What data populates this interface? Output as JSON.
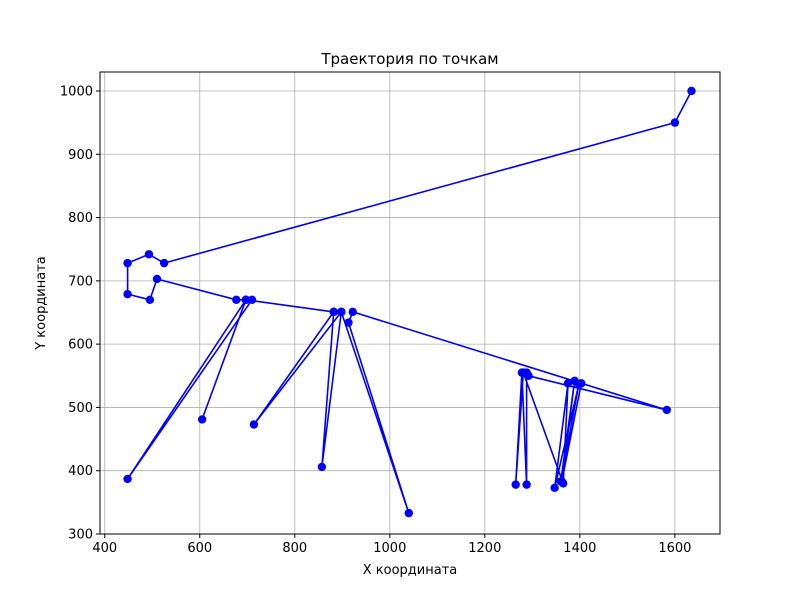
{
  "chart_data": {
    "type": "line",
    "title": "Траектория по точкам",
    "xlabel": "X координата",
    "ylabel": "Y координата",
    "xlim": [
      390,
      1695
    ],
    "ylim": [
      300,
      1030
    ],
    "xticks": [
      400,
      600,
      800,
      1000,
      1200,
      1400,
      1600
    ],
    "yticks": [
      300,
      400,
      500,
      600,
      700,
      800,
      900,
      1000
    ],
    "grid": true,
    "series": [
      {
        "color": "#0000ff",
        "marker": "circle",
        "points": [
          [
            1635,
            1000
          ],
          [
            1600,
            950
          ],
          [
            525,
            728
          ],
          [
            493,
            742
          ],
          [
            448,
            728
          ],
          [
            448,
            679
          ],
          [
            495,
            670
          ],
          [
            510,
            703
          ],
          [
            677,
            670
          ],
          [
            697,
            670
          ],
          [
            710,
            670
          ],
          [
            448,
            387
          ],
          [
            697,
            670
          ],
          [
            605,
            481
          ],
          [
            697,
            670
          ],
          [
            882,
            651
          ],
          [
            898,
            651
          ],
          [
            714,
            473
          ],
          [
            882,
            651
          ],
          [
            857,
            406
          ],
          [
            898,
            651
          ],
          [
            1040,
            333
          ],
          [
            913,
            634
          ],
          [
            922,
            651
          ],
          [
            1583,
            496
          ],
          [
            1292,
            550
          ],
          [
            1288,
            555
          ],
          [
            1288,
            378
          ],
          [
            1278,
            555
          ],
          [
            1265,
            378
          ],
          [
            1281,
            555
          ],
          [
            1365,
            380
          ],
          [
            1375,
            538
          ],
          [
            1347,
            373
          ],
          [
            1398,
            537
          ],
          [
            1360,
            383
          ],
          [
            1389,
            542
          ],
          [
            1362,
            383
          ],
          [
            1403,
            538
          ],
          [
            1362,
            383
          ]
        ]
      }
    ]
  }
}
